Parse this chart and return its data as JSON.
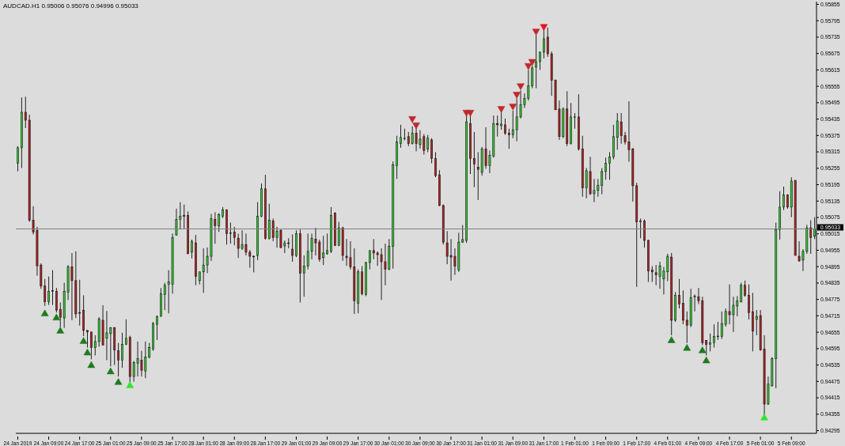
{
  "chart_data": {
    "type": "candlestick",
    "title": "AUDCAD.H1  0.95006 0.95076 0.94996 0.95033",
    "categories": [
      "24 Jan 2019",
      null,
      null,
      null,
      null,
      null,
      null,
      null,
      "24 Jan 09:00",
      null,
      null,
      null,
      null,
      null,
      null,
      null,
      "24 Jan 17:00",
      null,
      null,
      null,
      null,
      null,
      null,
      null,
      "25 Jan 01:00",
      null,
      null,
      null,
      null,
      null,
      null,
      null,
      "25 Jan 09:00",
      null,
      null,
      null,
      null,
      null,
      null,
      null,
      "25 Jan 17:00",
      null,
      null,
      null,
      null,
      null,
      null,
      null,
      "28 Jan 01:00",
      null,
      null,
      null,
      null,
      null,
      null,
      null,
      "28 Jan 09:00",
      null,
      null,
      null,
      null,
      null,
      null,
      null,
      "28 Jan 17:00",
      null,
      null,
      null,
      null,
      null,
      null,
      null,
      "29 Jan 01:00",
      null,
      null,
      null,
      null,
      null,
      null,
      null,
      "29 Jan 09:00",
      null,
      null,
      null,
      null,
      null,
      null,
      null,
      "29 Jan 17:00",
      null,
      null,
      null,
      null,
      null,
      null,
      null,
      "30 Jan 01:00",
      null,
      null,
      null,
      null,
      null,
      null,
      null,
      "30 Jan 09:00",
      null,
      null,
      null,
      null,
      null,
      null,
      null,
      "30 Jan 17:00",
      null,
      null,
      null,
      null,
      null,
      null,
      null,
      "31 Jan 01:00",
      null,
      null,
      null,
      null,
      null,
      null,
      null,
      "31 Jan 09:00",
      null,
      null,
      null,
      null,
      null,
      null,
      null,
      "31 Jan 17:00",
      null,
      null,
      null,
      null,
      null,
      null,
      null,
      "1 Feb 01:00",
      null,
      null,
      null,
      null,
      null,
      null,
      null,
      "1 Feb 09:00",
      null,
      null,
      null,
      null,
      null,
      null,
      null,
      "1 Feb 17:00",
      null,
      null,
      null,
      null,
      null,
      null,
      null,
      "4 Feb 01:00",
      null,
      null,
      null,
      null,
      null,
      null,
      null,
      "4 Feb 09:00",
      null,
      null,
      null,
      null,
      null,
      null,
      null,
      "4 Feb 17:00",
      null,
      null,
      null,
      null,
      null,
      null,
      null,
      "5 Feb 01:00",
      null,
      null,
      null,
      null,
      null,
      null,
      null,
      "5 Feb 09:00",
      null,
      null,
      null,
      null,
      null,
      null
    ],
    "ohlc": [
      [
        0.95273,
        0.95336,
        0.95244,
        0.9533
      ],
      [
        0.9533,
        0.95514,
        0.95256,
        0.9546
      ],
      [
        0.9546,
        0.95517,
        0.95402,
        0.95431
      ],
      [
        0.95431,
        0.95451,
        0.95059,
        0.95065
      ],
      [
        0.95065,
        0.95116,
        0.95013,
        0.95022
      ],
      [
        0.95028,
        0.95041,
        0.94862,
        0.94898
      ],
      [
        0.94901,
        0.94907,
        0.94814,
        0.94824
      ],
      [
        0.94824,
        0.9485,
        0.94751,
        0.94767
      ],
      [
        0.94767,
        0.94859,
        0.94755,
        0.94805
      ],
      [
        0.94808,
        0.94882,
        0.94755,
        0.94805
      ],
      [
        0.94805,
        0.94817,
        0.94727,
        0.94736
      ],
      [
        0.94739,
        0.94764,
        0.94674,
        0.9471
      ],
      [
        0.94707,
        0.94836,
        0.94671,
        0.94805
      ],
      [
        0.94802,
        0.94901,
        0.94773,
        0.94894
      ],
      [
        0.94894,
        0.94945,
        0.94699,
        0.94844
      ],
      [
        0.94844,
        0.94951,
        0.94707,
        0.94722
      ],
      [
        0.94727,
        0.94847,
        0.94679,
        0.94727
      ],
      [
        0.94736,
        0.9479,
        0.94641,
        0.94662
      ],
      [
        0.94662,
        0.94662,
        0.94599,
        0.94656
      ],
      [
        0.94656,
        0.94656,
        0.94556,
        0.94599
      ],
      [
        0.94599,
        0.94644,
        0.9457,
        0.94621
      ],
      [
        0.94621,
        0.9471,
        0.94602,
        0.94704
      ],
      [
        0.94699,
        0.94754,
        0.94608,
        0.94608
      ],
      [
        0.94633,
        0.94733,
        0.94553,
        0.94653
      ],
      [
        0.9465,
        0.94674,
        0.9453,
        0.94671
      ],
      [
        0.94671,
        0.94674,
        0.94535,
        0.9459
      ],
      [
        0.94587,
        0.94616,
        0.94493,
        0.94553
      ],
      [
        0.94553,
        0.94653,
        0.94525,
        0.9461
      ],
      [
        0.9461,
        0.94702,
        0.94608,
        0.94633
      ],
      [
        0.94636,
        0.94642,
        0.94471,
        0.94493
      ],
      [
        0.94493,
        0.9455,
        0.94474,
        0.94544
      ],
      [
        0.94541,
        0.94621,
        0.94493,
        0.94559
      ],
      [
        0.94553,
        0.94587,
        0.94493,
        0.94516
      ],
      [
        0.94513,
        0.94621,
        0.94487,
        0.94564
      ],
      [
        0.94564,
        0.94616,
        0.94559,
        0.94599
      ],
      [
        0.94593,
        0.94693,
        0.94587,
        0.94687
      ],
      [
        0.94684,
        0.94716,
        0.94627,
        0.94713
      ],
      [
        0.94713,
        0.94817,
        0.94713,
        0.94796
      ],
      [
        0.94793,
        0.94836,
        0.94736,
        0.94827
      ],
      [
        0.9483,
        0.94882,
        0.94724,
        0.94839
      ],
      [
        0.9483,
        0.95016,
        0.94796,
        0.95002
      ],
      [
        0.95011,
        0.95107,
        0.95008,
        0.95068
      ],
      [
        0.95068,
        0.95131,
        0.95031,
        0.95079
      ],
      [
        0.95082,
        0.95122,
        0.95034,
        0.95082
      ],
      [
        0.95082,
        0.95097,
        0.94942,
        0.94942
      ],
      [
        0.94948,
        0.94994,
        0.94925,
        0.94988
      ],
      [
        0.94982,
        0.95011,
        0.94827,
        0.94859
      ],
      [
        0.94844,
        0.94876,
        0.9483,
        0.94876
      ],
      [
        0.94876,
        0.94962,
        0.94799,
        0.94901
      ],
      [
        0.94901,
        0.94965,
        0.94871,
        0.94933
      ],
      [
        0.94933,
        0.95088,
        0.94916,
        0.95071
      ],
      [
        0.95068,
        0.95094,
        0.94979,
        0.95045
      ],
      [
        0.95045,
        0.95091,
        0.95022,
        0.95085
      ],
      [
        0.95079,
        0.95113,
        0.95073,
        0.95102
      ],
      [
        0.95102,
        0.95105,
        0.94976,
        0.95016
      ],
      [
        0.95019,
        0.95056,
        0.94979,
        0.95019
      ],
      [
        0.95022,
        0.95041,
        0.94973,
        0.95002
      ],
      [
        0.94999,
        0.95016,
        0.94927,
        0.94962
      ],
      [
        0.94962,
        0.95028,
        0.94956,
        0.94976
      ],
      [
        0.94976,
        0.95016,
        0.94936,
        0.94948
      ],
      [
        0.94948,
        0.94956,
        0.94891,
        0.94933
      ],
      [
        0.94933,
        0.94936,
        0.94874,
        0.94933
      ],
      [
        0.94936,
        0.95131,
        0.94919,
        0.95079
      ],
      [
        0.95079,
        0.95199,
        0.95076,
        0.9518
      ],
      [
        0.9518,
        0.95231,
        0.94994,
        0.94999
      ],
      [
        0.94999,
        0.95125,
        0.94994,
        0.95065
      ],
      [
        0.95062,
        0.95071,
        0.94988,
        0.95002
      ],
      [
        0.95002,
        0.95041,
        0.94965,
        0.95025
      ],
      [
        0.95028,
        0.95031,
        0.94962,
        0.94965
      ],
      [
        0.94971,
        0.94991,
        0.94945,
        0.94982
      ],
      [
        0.94982,
        0.94999,
        0.94962,
        0.94982
      ],
      [
        0.94959,
        0.95013,
        0.94913,
        0.94936
      ],
      [
        0.94936,
        0.95028,
        0.9493,
        0.95016
      ],
      [
        0.95016,
        0.95031,
        0.94764,
        0.94871
      ],
      [
        0.94871,
        0.94936,
        0.94785,
        0.94897
      ],
      [
        0.94897,
        0.95016,
        0.94885,
        0.94951
      ],
      [
        0.94951,
        0.95016,
        0.94922,
        0.94999
      ],
      [
        0.94996,
        0.95037,
        0.94936,
        0.94982
      ],
      [
        0.94985,
        0.94994,
        0.94913,
        0.94922
      ],
      [
        0.94928,
        0.95008,
        0.94901,
        0.94945
      ],
      [
        0.94942,
        0.95016,
        0.94939,
        0.94954
      ],
      [
        0.94951,
        0.95113,
        0.94945,
        0.95082
      ],
      [
        0.95091,
        0.95094,
        0.9497,
        0.94973
      ],
      [
        0.94973,
        0.95059,
        0.9497,
        0.95037
      ],
      [
        0.95037,
        0.95041,
        0.94916,
        0.94936
      ],
      [
        0.94933,
        0.94996,
        0.94898,
        0.94928
      ],
      [
        0.94928,
        0.94988,
        0.94885,
        0.94894
      ],
      [
        0.94894,
        0.94962,
        0.94722,
        0.9477
      ],
      [
        0.94761,
        0.94885,
        0.94724,
        0.94876
      ],
      [
        0.94876,
        0.94897,
        0.9479,
        0.94796
      ],
      [
        0.94793,
        0.94913,
        0.94787,
        0.9491
      ],
      [
        0.9491,
        0.94954,
        0.94885,
        0.94954
      ],
      [
        0.94954,
        0.94996,
        0.94922,
        0.94945
      ],
      [
        0.94945,
        0.94951,
        0.94898,
        0.94939
      ],
      [
        0.94939,
        0.94962,
        0.94773,
        0.94913
      ],
      [
        0.94913,
        0.94979,
        0.94827,
        0.94885
      ],
      [
        0.94885,
        0.94996,
        0.94882,
        0.9497
      ],
      [
        0.9497,
        0.9528,
        0.94888,
        0.95268
      ],
      [
        0.95265,
        0.95374,
        0.95216,
        0.95351
      ],
      [
        0.95345,
        0.95414,
        0.9533,
        0.95368
      ],
      [
        0.95365,
        0.954,
        0.95357,
        0.95365
      ],
      [
        0.95371,
        0.95388,
        0.95336,
        0.95345
      ],
      [
        0.95345,
        0.95408,
        0.95342,
        0.95383
      ],
      [
        0.95383,
        0.95402,
        0.95317,
        0.95345
      ],
      [
        0.95342,
        0.95394,
        0.95327,
        0.95362
      ],
      [
        0.95371,
        0.9538,
        0.95305,
        0.9532
      ],
      [
        0.95326,
        0.95377,
        0.95314,
        0.95365
      ],
      [
        0.95359,
        0.95365,
        0.95273,
        0.95291
      ],
      [
        0.95291,
        0.95314,
        0.95222,
        0.95228
      ],
      [
        0.95231,
        0.95248,
        0.95116,
        0.95119
      ],
      [
        0.95119,
        0.95122,
        0.94976,
        0.94985
      ],
      [
        0.94982,
        0.95025,
        0.94904,
        0.94933
      ],
      [
        0.94936,
        0.94996,
        0.94844,
        0.9493
      ],
      [
        0.94933,
        0.94962,
        0.94865,
        0.94897
      ],
      [
        0.94882,
        0.95019,
        0.94876,
        0.94985
      ],
      [
        0.94985,
        0.95047,
        0.94982,
        0.94994
      ],
      [
        0.94991,
        0.95451,
        0.94982,
        0.95425
      ],
      [
        0.95419,
        0.95451,
        0.95234,
        0.95291
      ],
      [
        0.95291,
        0.95388,
        0.95186,
        0.95271
      ],
      [
        0.95259,
        0.95314,
        0.95139,
        0.95251
      ],
      [
        0.9524,
        0.95333,
        0.95228,
        0.95326
      ],
      [
        0.95326,
        0.95405,
        0.95253,
        0.95265
      ],
      [
        0.95265,
        0.9532,
        0.95237,
        0.95302
      ],
      [
        0.95299,
        0.95448,
        0.95294,
        0.95419
      ],
      [
        0.95419,
        0.95448,
        0.95371,
        0.95414
      ],
      [
        0.95411,
        0.9546,
        0.95396,
        0.95417
      ],
      [
        0.95414,
        0.95437,
        0.95377,
        0.95383
      ],
      [
        0.95383,
        0.954,
        0.95326,
        0.95377
      ],
      [
        0.95377,
        0.95466,
        0.95365,
        0.95396
      ],
      [
        0.95396,
        0.95511,
        0.95354,
        0.95443
      ],
      [
        0.95443,
        0.9554,
        0.95437,
        0.95488
      ],
      [
        0.95488,
        0.95529,
        0.95476,
        0.95511
      ],
      [
        0.95511,
        0.95615,
        0.95503,
        0.95557
      ],
      [
        0.95557,
        0.95631,
        0.95548,
        0.95622
      ],
      [
        0.95625,
        0.95743,
        0.95548,
        0.95645
      ],
      [
        0.95645,
        0.95682,
        0.95615,
        0.9568
      ],
      [
        0.9568,
        0.95764,
        0.95657,
        0.95729
      ],
      [
        0.95735,
        0.9577,
        0.95663,
        0.95674
      ],
      [
        0.95674,
        0.95682,
        0.9552,
        0.95577
      ],
      [
        0.95577,
        0.9558,
        0.95469,
        0.95469
      ],
      [
        0.95472,
        0.95503,
        0.95359,
        0.95371
      ],
      [
        0.95371,
        0.95478,
        0.95365,
        0.95472
      ],
      [
        0.95472,
        0.95537,
        0.95336,
        0.95345
      ],
      [
        0.95345,
        0.95494,
        0.95342,
        0.95443
      ],
      [
        0.95443,
        0.95457,
        0.954,
        0.95443
      ],
      [
        0.95443,
        0.95526,
        0.9532,
        0.95326
      ],
      [
        0.95326,
        0.95374,
        0.95151,
        0.95183
      ],
      [
        0.95183,
        0.95256,
        0.95145,
        0.95246
      ],
      [
        0.95243,
        0.95297,
        0.95157,
        0.95162
      ],
      [
        0.95162,
        0.95216,
        0.95131,
        0.95174
      ],
      [
        0.95174,
        0.95216,
        0.95151,
        0.95193
      ],
      [
        0.95193,
        0.95256,
        0.9516,
        0.95243
      ],
      [
        0.95243,
        0.95294,
        0.95213,
        0.95273
      ],
      [
        0.95273,
        0.95314,
        0.95213,
        0.95297
      ],
      [
        0.95297,
        0.95414,
        0.95288,
        0.95371
      ],
      [
        0.95368,
        0.95457,
        0.95323,
        0.95428
      ],
      [
        0.95425,
        0.95457,
        0.95345,
        0.95374
      ],
      [
        0.95374,
        0.95388,
        0.95342,
        0.95351
      ],
      [
        0.95351,
        0.955,
        0.95279,
        0.95323
      ],
      [
        0.95326,
        0.95329,
        0.95133,
        0.95191
      ],
      [
        0.95191,
        0.95202,
        0.94821,
        0.95059
      ],
      [
        0.95062,
        0.95071,
        0.94999,
        0.95062
      ],
      [
        0.95062,
        0.95068,
        0.94965,
        0.94991
      ],
      [
        0.94991,
        0.94994,
        0.94839,
        0.94879
      ],
      [
        0.94882,
        0.94897,
        0.94839,
        0.94876
      ],
      [
        0.94873,
        0.94901,
        0.94827,
        0.94865
      ],
      [
        0.94859,
        0.94913,
        0.94814,
        0.94898
      ],
      [
        0.9485,
        0.94894,
        0.94793,
        0.94879
      ],
      [
        0.94876,
        0.94942,
        0.94842,
        0.94933
      ],
      [
        0.9493,
        0.94945,
        0.94644,
        0.94699
      ],
      [
        0.94699,
        0.94802,
        0.94693,
        0.9479
      ],
      [
        0.9479,
        0.9485,
        0.94742,
        0.94758
      ],
      [
        0.94761,
        0.94808,
        0.94684,
        0.94699
      ],
      [
        0.94699,
        0.94731,
        0.94616,
        0.94681
      ],
      [
        0.94681,
        0.94814,
        0.94674,
        0.94782
      ],
      [
        0.94787,
        0.94793,
        0.94731,
        0.94787
      ],
      [
        0.94785,
        0.94817,
        0.94758,
        0.9477
      ],
      [
        0.9477,
        0.94785,
        0.94608,
        0.94616
      ],
      [
        0.94625,
        0.94625,
        0.9457,
        0.9461
      ],
      [
        0.9461,
        0.9465,
        0.94585,
        0.94616
      ],
      [
        0.94616,
        0.94684,
        0.94599,
        0.94639
      ],
      [
        0.94639,
        0.94693,
        0.94627,
        0.94641
      ],
      [
        0.94639,
        0.94731,
        0.9463,
        0.94687
      ],
      [
        0.94684,
        0.94742,
        0.94676,
        0.94731
      ],
      [
        0.94731,
        0.9483,
        0.94684,
        0.94719
      ],
      [
        0.94719,
        0.94785,
        0.94656,
        0.94754
      ],
      [
        0.94751,
        0.94787,
        0.94713,
        0.9477
      ],
      [
        0.94767,
        0.94836,
        0.94764,
        0.94827
      ],
      [
        0.94827,
        0.94844,
        0.94785,
        0.9479
      ],
      [
        0.9479,
        0.9483,
        0.94702,
        0.94727
      ],
      [
        0.9473,
        0.94799,
        0.94585,
        0.94659
      ],
      [
        0.94702,
        0.94736,
        0.94644,
        0.94713
      ],
      [
        0.94716,
        0.94736,
        0.94587,
        0.9459
      ],
      [
        0.94593,
        0.94644,
        0.9435,
        0.94392
      ],
      [
        0.94392,
        0.94493,
        0.94389,
        0.94465
      ],
      [
        0.94459,
        0.94564,
        0.94456,
        0.94559
      ],
      [
        0.94559,
        0.95056,
        0.9445,
        0.95031
      ],
      [
        0.95031,
        0.95171,
        0.94994,
        0.95113
      ],
      [
        0.95113,
        0.95188,
        0.95102,
        0.95157
      ],
      [
        0.95157,
        0.9516,
        0.95107,
        0.95113
      ],
      [
        0.95113,
        0.95222,
        0.95076,
        0.95208
      ],
      [
        0.95211,
        0.95211,
        0.94936,
        0.94936
      ],
      [
        0.94933,
        0.94988,
        0.94913,
        0.94916
      ],
      [
        0.94919,
        0.94959,
        0.94879,
        0.94951
      ],
      [
        0.94951,
        0.95048,
        0.94942,
        0.95037
      ],
      [
        0.95037,
        0.95065,
        0.94942,
        0.95002
      ],
      [
        0.95006,
        0.95076,
        0.94996,
        0.95033
      ]
    ],
    "colors": [
      "#32cd32",
      "#32cd32",
      "#b22222",
      "#b22222",
      "#b22222",
      "#b22222",
      "#b22222",
      "#b22222",
      "#32cd32",
      "#b22222",
      "#b22222",
      "#b22222",
      "#32cd32",
      "#32cd32",
      "#b22222",
      "#b22222",
      "#32cd32",
      "#b22222",
      "#b22222",
      "#b22222",
      "#32cd32",
      "#32cd32",
      "#b22222",
      "#32cd32",
      "#32cd32",
      "#b22222",
      "#b22222",
      "#32cd32",
      "#32cd32",
      "#b22222",
      "#32cd32",
      "#32cd32",
      "#b22222",
      "#32cd32",
      "#32cd32",
      "#32cd32",
      "#32cd32",
      "#32cd32",
      "#32cd32",
      "#32cd32",
      "#32cd32",
      "#32cd32",
      "#32cd32",
      "#32cd32",
      "#b22222",
      "#32cd32",
      "#b22222",
      "#32cd32",
      "#32cd32",
      "#32cd32",
      "#32cd32",
      "#b22222",
      "#32cd32",
      "#32cd32",
      "#b22222",
      "#32cd32",
      "#b22222",
      "#b22222",
      "#32cd32",
      "#b22222",
      "#b22222",
      "#32cd32",
      "#32cd32",
      "#32cd32",
      "#b22222",
      "#32cd32",
      "#b22222",
      "#32cd32",
      "#b22222",
      "#32cd32",
      "#32cd32",
      "#b22222",
      "#32cd32",
      "#b22222",
      "#32cd32",
      "#32cd32",
      "#32cd32",
      "#b22222",
      "#b22222",
      "#32cd32",
      "#32cd32",
      "#32cd32",
      "#b22222",
      "#32cd32",
      "#b22222",
      "#b22222",
      "#b22222",
      "#b22222",
      "#32cd32",
      "#b22222",
      "#32cd32",
      "#32cd32",
      "#b22222",
      "#b22222",
      "#b22222",
      "#b22222",
      "#32cd32",
      "#32cd32",
      "#32cd32",
      "#32cd32",
      "#32cd32",
      "#b22222",
      "#32cd32",
      "#b22222",
      "#32cd32",
      "#b22222",
      "#32cd32",
      "#b22222",
      "#b22222",
      "#b22222",
      "#b22222",
      "#b22222",
      "#b22222",
      "#b22222",
      "#32cd32",
      "#32cd32",
      "#32cd32",
      "#b22222",
      "#b22222",
      "#b22222",
      "#32cd32",
      "#b22222",
      "#32cd32",
      "#32cd32",
      "#b22222",
      "#32cd32",
      "#b22222",
      "#b22222",
      "#32cd32",
      "#32cd32",
      "#32cd32",
      "#32cd32",
      "#32cd32",
      "#32cd32",
      "#32cd32",
      "#32cd32",
      "#32cd32",
      "#b22222",
      "#b22222",
      "#b22222",
      "#b22222",
      "#32cd32",
      "#b22222",
      "#32cd32",
      "#32cd32",
      "#b22222",
      "#b22222",
      "#32cd32",
      "#b22222",
      "#32cd32",
      "#32cd32",
      "#32cd32",
      "#32cd32",
      "#32cd32",
      "#32cd32",
      "#32cd32",
      "#b22222",
      "#b22222",
      "#b22222",
      "#b22222",
      "#b22222",
      "#32cd32",
      "#b22222",
      "#b22222",
      "#b22222",
      "#b22222",
      "#32cd32",
      "#32cd32",
      "#32cd32",
      "#b22222",
      "#32cd32",
      "#b22222",
      "#b22222",
      "#b22222",
      "#32cd32",
      "#32cd32",
      "#b22222",
      "#b22222",
      "#b22222",
      "#32cd32",
      "#32cd32",
      "#32cd32",
      "#32cd32",
      "#32cd32",
      "#b22222",
      "#32cd32",
      "#32cd32",
      "#32cd32",
      "#b22222",
      "#b22222",
      "#b22222",
      "#32cd32",
      "#b22222",
      "#b22222",
      "#32cd32",
      "#32cd32",
      "#32cd32",
      "#32cd32",
      "#32cd32",
      "#b22222",
      "#32cd32",
      "#b22222",
      "#b22222",
      "#32cd32",
      "#32cd32",
      "#b22222",
      "#32cd32"
    ],
    "marker": "triangle",
    "series": [
      {
        "type": "scatter",
        "color": "#1f7a1f",
        "values": [
          null,
          null,
          null,
          null,
          null,
          null,
          null,
          0.94722,
          null,
          null,
          0.94707,
          0.94659,
          null,
          null,
          null,
          null,
          null,
          0.94621,
          0.94579,
          0.94533,
          null,
          null,
          null,
          null,
          0.9451,
          null,
          0.94471,
          null,
          null,
          null,
          null,
          null,
          null,
          null,
          null,
          null,
          null,
          null,
          null,
          null,
          null,
          null,
          null,
          null,
          null,
          null,
          null,
          null,
          null,
          null,
          null,
          null,
          null,
          null,
          null,
          null,
          null,
          null,
          null,
          null,
          null,
          null,
          null,
          null,
          null,
          null,
          null,
          null,
          null,
          null,
          null,
          null,
          null,
          null,
          null,
          null,
          null,
          null,
          null,
          null,
          null,
          null,
          null,
          null,
          null,
          null,
          null,
          null,
          null,
          null,
          null,
          null,
          null,
          null,
          null,
          null,
          null,
          null,
          null,
          null,
          null,
          null,
          null,
          null,
          null,
          null,
          null,
          null,
          null,
          null,
          null,
          null,
          null,
          null,
          null,
          null,
          null,
          null,
          null,
          null,
          null,
          null,
          null,
          null,
          null,
          null,
          null,
          null,
          null,
          null,
          null,
          null,
          null,
          null,
          null,
          null,
          null,
          null,
          null,
          null,
          null,
          null,
          null,
          null,
          null,
          null,
          null,
          null,
          null,
          null,
          null,
          null,
          null,
          null,
          null,
          null,
          null,
          null,
          null,
          null,
          null,
          null,
          null,
          null,
          null,
          null,
          null,
          null,
          null,
          0.94624,
          null,
          null,
          null,
          0.94596,
          null,
          null,
          null,
          0.94587,
          0.9455,
          null,
          null,
          null,
          null,
          null,
          null,
          null,
          null,
          null,
          null,
          null,
          null,
          null,
          null,
          null,
          null,
          null,
          null,
          null,
          null,
          null,
          null,
          null,
          null,
          null,
          null,
          null,
          null
        ]
      },
      {
        "type": "scatter",
        "color": "#2ee82e",
        "values": [
          null,
          null,
          null,
          null,
          null,
          null,
          null,
          null,
          null,
          null,
          null,
          null,
          null,
          null,
          null,
          null,
          null,
          null,
          null,
          null,
          null,
          null,
          null,
          null,
          null,
          null,
          null,
          null,
          null,
          0.94459,
          null,
          null,
          null,
          null,
          null,
          null,
          null,
          null,
          null,
          null,
          null,
          null,
          null,
          null,
          null,
          null,
          null,
          null,
          null,
          null,
          null,
          null,
          null,
          null,
          null,
          null,
          null,
          null,
          null,
          null,
          null,
          null,
          null,
          null,
          null,
          null,
          null,
          null,
          null,
          null,
          null,
          null,
          null,
          null,
          null,
          null,
          null,
          null,
          null,
          null,
          null,
          null,
          null,
          null,
          null,
          null,
          null,
          null,
          null,
          null,
          null,
          null,
          null,
          null,
          null,
          null,
          null,
          null,
          null,
          null,
          null,
          null,
          null,
          null,
          null,
          null,
          null,
          null,
          null,
          null,
          null,
          null,
          null,
          null,
          null,
          null,
          null,
          null,
          null,
          null,
          null,
          null,
          null,
          null,
          null,
          null,
          null,
          null,
          null,
          null,
          null,
          null,
          null,
          null,
          null,
          null,
          null,
          null,
          null,
          null,
          null,
          null,
          null,
          null,
          null,
          null,
          null,
          null,
          null,
          null,
          null,
          null,
          null,
          null,
          null,
          null,
          null,
          null,
          null,
          null,
          null,
          null,
          null,
          null,
          null,
          null,
          null,
          null,
          null,
          null,
          null,
          null,
          null,
          null,
          null,
          null,
          null,
          null,
          null,
          null,
          null,
          null,
          null,
          null,
          null,
          null,
          null,
          null,
          null,
          null,
          null,
          null,
          null,
          0.94341,
          null,
          null,
          null,
          null,
          null,
          null,
          null,
          null,
          null,
          null,
          null,
          null,
          null
        ]
      },
      {
        "type": "scatter",
        "color": "#c0282d",
        "values": [
          null,
          null,
          null,
          null,
          null,
          null,
          null,
          null,
          null,
          null,
          null,
          null,
          null,
          null,
          null,
          null,
          null,
          null,
          null,
          null,
          null,
          null,
          null,
          null,
          null,
          null,
          null,
          null,
          null,
          null,
          null,
          null,
          null,
          null,
          null,
          null,
          null,
          null,
          null,
          null,
          null,
          null,
          null,
          null,
          null,
          null,
          null,
          null,
          null,
          null,
          null,
          null,
          null,
          null,
          null,
          null,
          null,
          null,
          null,
          null,
          null,
          null,
          null,
          null,
          null,
          null,
          null,
          null,
          null,
          null,
          null,
          null,
          null,
          null,
          null,
          null,
          null,
          null,
          null,
          null,
          null,
          null,
          null,
          null,
          null,
          null,
          null,
          null,
          null,
          null,
          null,
          null,
          null,
          null,
          null,
          null,
          null,
          null,
          null,
          null,
          null,
          null,
          0.95437,
          0.95414,
          null,
          null,
          null,
          null,
          null,
          null,
          null,
          null,
          null,
          null,
          null,
          null,
          0.9546,
          0.9546,
          null,
          null,
          null,
          null,
          null,
          null,
          null,
          0.95474,
          null,
          null,
          0.95483,
          0.95526,
          0.95557,
          null,
          0.95631,
          0.95646,
          0.95757,
          null,
          null,
          null,
          null,
          null,
          null,
          null,
          null,
          null,
          null,
          null,
          null,
          null,
          null,
          null,
          null,
          null,
          null,
          null,
          null,
          null,
          null,
          null,
          null,
          null,
          null,
          null,
          null,
          null,
          null,
          null,
          null,
          null,
          null,
          null,
          null,
          null,
          null,
          null,
          null,
          null,
          null,
          null,
          null,
          null,
          null,
          null,
          null,
          null,
          null,
          null,
          null,
          null,
          null,
          null,
          null,
          null,
          null,
          null,
          null,
          null,
          null,
          null,
          null,
          null,
          null,
          null,
          null,
          null,
          null,
          null,
          null
        ]
      },
      {
        "type": "scatter",
        "color": "#e8141b",
        "values": [
          null,
          null,
          null,
          null,
          null,
          null,
          null,
          null,
          null,
          null,
          null,
          null,
          null,
          null,
          null,
          null,
          null,
          null,
          null,
          null,
          null,
          null,
          null,
          null,
          null,
          null,
          null,
          null,
          null,
          null,
          null,
          null,
          null,
          null,
          null,
          null,
          null,
          null,
          null,
          null,
          null,
          null,
          null,
          null,
          null,
          null,
          null,
          null,
          null,
          null,
          null,
          null,
          null,
          null,
          null,
          null,
          null,
          null,
          null,
          null,
          null,
          null,
          null,
          null,
          null,
          null,
          null,
          null,
          null,
          null,
          null,
          null,
          null,
          null,
          null,
          null,
          null,
          null,
          null,
          null,
          null,
          null,
          null,
          null,
          null,
          null,
          null,
          null,
          null,
          null,
          null,
          null,
          null,
          null,
          null,
          null,
          null,
          null,
          null,
          null,
          null,
          null,
          null,
          null,
          null,
          null,
          null,
          null,
          null,
          null,
          null,
          null,
          null,
          null,
          null,
          null,
          null,
          null,
          null,
          null,
          null,
          null,
          null,
          null,
          null,
          null,
          null,
          null,
          null,
          null,
          null,
          null,
          null,
          null,
          null,
          null,
          0.95774,
          null,
          null,
          null,
          null,
          null,
          null,
          null,
          null,
          null,
          null,
          null,
          null,
          null,
          null,
          null,
          null,
          null,
          null,
          null,
          null,
          null,
          null,
          null,
          null,
          null,
          null,
          null,
          null,
          null,
          null,
          null,
          null,
          null,
          null,
          null,
          null,
          null,
          null,
          null,
          null,
          null,
          null,
          null,
          null,
          null,
          null,
          null,
          null,
          null,
          null,
          null,
          null,
          null,
          null,
          null,
          null,
          null,
          null,
          null,
          null,
          null,
          null,
          null,
          null,
          null,
          null,
          null,
          null,
          null,
          null
        ]
      }
    ],
    "ylim": [
      0.94285,
      0.95865
    ],
    "yticks": [
      0.94295,
      0.94355,
      0.94415,
      0.94475,
      0.94535,
      0.94595,
      0.94655,
      0.94715,
      0.94775,
      0.94835,
      0.94895,
      0.94955,
      0.95015,
      0.95075,
      0.95135,
      0.95195,
      0.95255,
      0.95315,
      0.95375,
      0.95435,
      0.95495,
      0.95555,
      0.95615,
      0.95675,
      0.95735,
      0.95795,
      0.95855
    ],
    "ref_lines": [
      {
        "axis": "y",
        "value": 0.95033,
        "label": "0.95033",
        "color": "#808080"
      }
    ]
  }
}
